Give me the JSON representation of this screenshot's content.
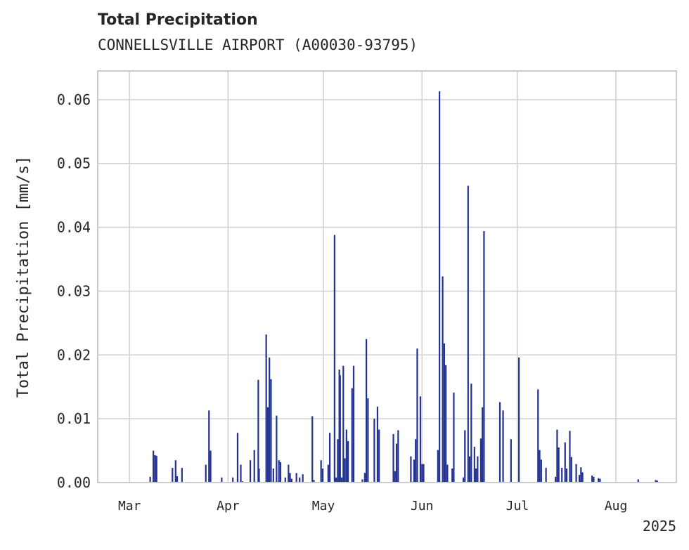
{
  "chart_data": {
    "type": "bar",
    "title": "Total Precipitation",
    "subtitle": "CONNELLSVILLE AIRPORT (A00030-93795)",
    "ylabel": "Total Precipitation [mm/s]",
    "xlabel": "",
    "year_label": "2025",
    "ylim": [
      0,
      0.0645
    ],
    "xlim": [
      "2025-02-19",
      "2025-08-20"
    ],
    "yticks": [
      0.0,
      0.01,
      0.02,
      0.03,
      0.04,
      0.05,
      0.06
    ],
    "ytick_labels": [
      "0.00",
      "0.01",
      "0.02",
      "0.03",
      "0.04",
      "0.05",
      "0.06"
    ],
    "xticks": [
      "2025-03-01",
      "2025-04-01",
      "2025-05-01",
      "2025-06-01",
      "2025-07-01",
      "2025-08-01"
    ],
    "xtick_labels": [
      "Mar",
      "Apr",
      "May",
      "Jun",
      "Jul",
      "Aug"
    ],
    "grid": true,
    "bar_color": "#233292",
    "x": [
      "2025-03-07T12:00",
      "2025-03-08T12:00",
      "2025-03-09T00:00",
      "2025-03-09T12:00",
      "2025-03-14T12:00",
      "2025-03-15T12:00",
      "2025-03-16T00:00",
      "2025-03-17T12:00",
      "2025-03-25T00:00",
      "2025-03-26T00:00",
      "2025-03-26T12:00",
      "2025-03-30T00:00",
      "2025-04-02T12:00",
      "2025-04-04T00:00",
      "2025-04-05T00:00",
      "2025-04-05T12:00",
      "2025-04-08T00:00",
      "2025-04-09T06:00",
      "2025-04-10T12:00",
      "2025-04-10T18:00",
      "2025-04-13T00:00",
      "2025-04-13T12:00",
      "2025-04-14T00:00",
      "2025-04-14T12:00",
      "2025-04-15T06:00",
      "2025-04-16T06:00",
      "2025-04-17T00:00",
      "2025-04-17T12:00",
      "2025-04-19T00:00",
      "2025-04-20T00:00",
      "2025-04-20T12:00",
      "2025-04-21T00:00",
      "2025-04-22T12:00",
      "2025-04-23T12:00",
      "2025-04-24T12:00",
      "2025-04-27T12:00",
      "2025-04-28T00:00",
      "2025-04-30T06:00",
      "2025-04-30T18:00",
      "2025-05-02T12:00",
      "2025-05-03T00:00",
      "2025-05-04T12:00",
      "2025-05-05T00:00",
      "2025-05-05T12:00",
      "2025-05-06T00:00",
      "2025-05-06T06:00",
      "2025-05-06T18:00",
      "2025-05-07T06:00",
      "2025-05-07T18:00",
      "2025-05-08T06:00",
      "2025-05-08T18:00",
      "2025-05-10T00:00",
      "2025-05-10T12:00",
      "2025-05-13T06:00",
      "2025-05-14T00:00",
      "2025-05-14T12:00",
      "2025-05-15T00:00",
      "2025-05-17T00:00",
      "2025-05-18T00:00",
      "2025-05-18T12:00",
      "2025-05-23T00:00",
      "2025-05-23T12:00",
      "2025-05-24T00:00",
      "2025-05-24T12:00",
      "2025-05-28T12:00",
      "2025-05-29T12:00",
      "2025-05-30T00:00",
      "2025-05-30T12:00",
      "2025-05-31T12:00",
      "2025-06-01T00:00",
      "2025-06-01T12:00",
      "2025-06-06T00:00",
      "2025-06-06T12:00",
      "2025-06-07T12:00",
      "2025-06-08T00:00",
      "2025-06-08T12:00",
      "2025-06-09T00:00",
      "2025-06-10T12:00",
      "2025-06-11T00:00",
      "2025-06-14T00:00",
      "2025-06-14T12:00",
      "2025-06-15T12:00",
      "2025-06-16T00:00",
      "2025-06-16T12:00",
      "2025-06-17T12:00",
      "2025-06-18T00:00",
      "2025-06-18T12:00",
      "2025-06-19T12:00",
      "2025-06-20T00:00",
      "2025-06-20T12:00",
      "2025-06-25T12:00",
      "2025-06-26T12:00",
      "2025-06-29T00:00",
      "2025-07-01T12:00",
      "2025-07-07T12:00",
      "2025-07-08T00:00",
      "2025-07-08T12:00",
      "2025-07-10T00:00",
      "2025-07-13T00:00",
      "2025-07-13T12:00",
      "2025-07-14T00:00",
      "2025-07-15T00:00",
      "2025-07-16T00:00",
      "2025-07-16T12:00",
      "2025-07-17T12:00",
      "2025-07-18T00:00",
      "2025-07-19T12:00",
      "2025-07-20T12:00",
      "2025-07-21T00:00",
      "2025-07-21T12:00",
      "2025-07-24T12:00",
      "2025-07-25T00:00",
      "2025-07-26T12:00",
      "2025-07-27T00:00",
      "2025-08-08T00:00",
      "2025-08-13T12:00",
      "2025-08-14T00:00"
    ],
    "values": [
      0.0009,
      0.005,
      0.0043,
      0.0042,
      0.0023,
      0.0035,
      0.001,
      0.0023,
      0.0028,
      0.0113,
      0.005,
      0.0008,
      0.0008,
      0.0078,
      0.0028,
      0.0002,
      0.0035,
      0.0051,
      0.0161,
      0.0022,
      0.0232,
      0.0118,
      0.0196,
      0.0162,
      0.0022,
      0.0105,
      0.0035,
      0.0032,
      0.0008,
      0.0028,
      0.0015,
      0.0006,
      0.0015,
      0.0008,
      0.0013,
      0.0104,
      0.0004,
      0.0035,
      0.0022,
      0.0028,
      0.0078,
      0.0388,
      0.0008,
      0.0068,
      0.0177,
      0.0168,
      0.0008,
      0.0183,
      0.0038,
      0.0083,
      0.0065,
      0.0148,
      0.0183,
      0.0005,
      0.0015,
      0.0225,
      0.0132,
      0.01,
      0.0119,
      0.0083,
      0.0076,
      0.0018,
      0.0061,
      0.0082,
      0.0041,
      0.0036,
      0.0068,
      0.021,
      0.0135,
      0.0029,
      0.0029,
      0.0051,
      0.0613,
      0.0323,
      0.0218,
      0.0184,
      0.0028,
      0.0022,
      0.0141,
      0.0008,
      0.0082,
      0.0465,
      0.0041,
      0.0155,
      0.0056,
      0.0022,
      0.0041,
      0.0069,
      0.0118,
      0.0394,
      0.0126,
      0.0113,
      0.0068,
      0.0196,
      0.0146,
      0.0051,
      0.0036,
      0.0023,
      0.0009,
      0.0083,
      0.0055,
      0.0023,
      0.0063,
      0.0022,
      0.0081,
      0.004,
      0.0029,
      0.0012,
      0.0024,
      0.0016,
      0.0011,
      0.0009,
      0.0007,
      0.0006,
      0.0005,
      0.0004,
      0.0003
    ]
  }
}
